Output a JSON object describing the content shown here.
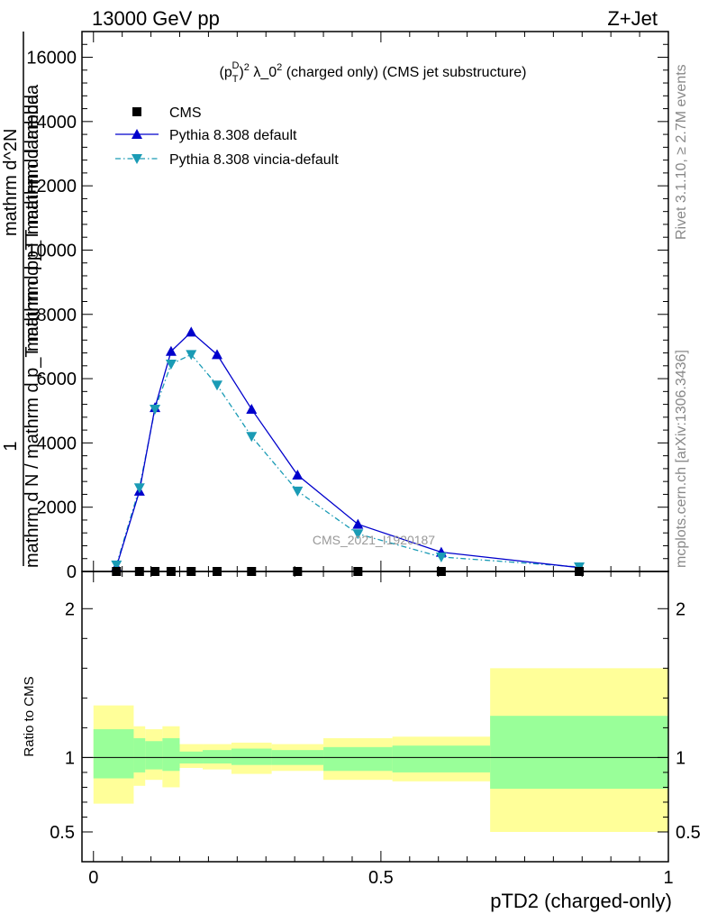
{
  "header": {
    "left": "13000 GeV pp",
    "right": "Z+Jet"
  },
  "side_text": {
    "rivet": "Rivet 3.1.10, ≥ 2.7M events",
    "mcplots": "mcplots.cern.ch [arXiv:1306.3436]"
  },
  "watermark": "CMS_2021_I1920187",
  "chart_data": [
    {
      "type": "line",
      "title": "(p_T^D)^2 λ_0^2 (charged only) (CMS jet substructure)",
      "ylabel_parts": [
        "1",
        "mathrm d N",
        "mathrm d N / mathrm d p_T mathrm d p_T mathrm d lambda",
        "mathrm d^2N",
        "mathrm d p_T mathrm d lambda"
      ],
      "ylim": [
        0,
        16800
      ],
      "yticks": [
        0,
        2000,
        4000,
        6000,
        8000,
        10000,
        12000,
        14000,
        16000
      ],
      "ytick_labels": [
        "0",
        "2000",
        "4000",
        "6000",
        "8000",
        "10000",
        "12000",
        "14000",
        "16000"
      ],
      "xlim": [
        -0.02,
        1.0
      ],
      "legend_position": "top-left",
      "series": [
        {
          "name": "CMS",
          "marker": "square",
          "color": "#000000",
          "x": [
            0.04,
            0.08,
            0.107,
            0.135,
            0.17,
            0.215,
            0.275,
            0.355,
            0.46,
            0.605,
            0.845
          ],
          "y": [
            0,
            0,
            0,
            0,
            0,
            0,
            0,
            0,
            0,
            0,
            0
          ]
        },
        {
          "name": "Pythia 8.308 default",
          "marker": "triangle-up",
          "line": "solid",
          "color": "#0000cc",
          "x": [
            0.04,
            0.08,
            0.107,
            0.135,
            0.17,
            0.215,
            0.275,
            0.355,
            0.46,
            0.605,
            0.845
          ],
          "y": [
            150,
            2500,
            5100,
            6850,
            7450,
            6750,
            5050,
            3000,
            1470,
            600,
            120
          ]
        },
        {
          "name": "Pythia 8.308 vincia-default",
          "marker": "triangle-down",
          "line": "dash-dot",
          "color": "#1a9bb5",
          "x": [
            0.04,
            0.08,
            0.107,
            0.135,
            0.17,
            0.215,
            0.275,
            0.355,
            0.46,
            0.605,
            0.845
          ],
          "y": [
            200,
            2600,
            5050,
            6450,
            6750,
            5800,
            4200,
            2500,
            1170,
            450,
            140
          ]
        }
      ]
    },
    {
      "type": "area",
      "ylabel": "Ratio to CMS",
      "xlabel": "pTD2 (charged-only)",
      "ylim": [
        0.3,
        2.25
      ],
      "yticks": [
        0.5,
        1,
        2
      ],
      "ytick_labels": [
        "0.5",
        "1",
        "2"
      ],
      "xlim": [
        -0.02,
        1.0
      ],
      "xticks": [
        0,
        0.5,
        1
      ],
      "xtick_labels": [
        "0",
        "0.5",
        "1"
      ],
      "reference_line": 1,
      "band_colors": {
        "inner": "#99ff99",
        "outer": "#ffff99"
      },
      "bins": [
        {
          "lo": 0.0,
          "hi": 0.07,
          "inner": [
            0.86,
            1.19
          ],
          "outer": [
            0.69,
            1.35
          ]
        },
        {
          "lo": 0.07,
          "hi": 0.09,
          "inner": [
            0.9,
            1.13
          ],
          "outer": [
            0.81,
            1.21
          ]
        },
        {
          "lo": 0.09,
          "hi": 0.12,
          "inner": [
            0.92,
            1.11
          ],
          "outer": [
            0.85,
            1.19
          ]
        },
        {
          "lo": 0.12,
          "hi": 0.15,
          "inner": [
            0.91,
            1.13
          ],
          "outer": [
            0.8,
            1.21
          ]
        },
        {
          "lo": 0.15,
          "hi": 0.19,
          "inner": [
            0.96,
            1.04
          ],
          "outer": [
            0.93,
            1.09
          ]
        },
        {
          "lo": 0.19,
          "hi": 0.24,
          "inner": [
            0.96,
            1.05
          ],
          "outer": [
            0.92,
            1.09
          ]
        },
        {
          "lo": 0.24,
          "hi": 0.31,
          "inner": [
            0.95,
            1.06
          ],
          "outer": [
            0.89,
            1.1
          ]
        },
        {
          "lo": 0.31,
          "hi": 0.4,
          "inner": [
            0.95,
            1.05
          ],
          "outer": [
            0.91,
            1.09
          ]
        },
        {
          "lo": 0.4,
          "hi": 0.52,
          "inner": [
            0.91,
            1.07
          ],
          "outer": [
            0.85,
            1.13
          ]
        },
        {
          "lo": 0.52,
          "hi": 0.69,
          "inner": [
            0.9,
            1.08
          ],
          "outer": [
            0.84,
            1.14
          ]
        },
        {
          "lo": 0.69,
          "hi": 1.0,
          "inner": [
            0.79,
            1.28
          ],
          "outer": [
            0.5,
            1.6
          ]
        }
      ]
    }
  ]
}
